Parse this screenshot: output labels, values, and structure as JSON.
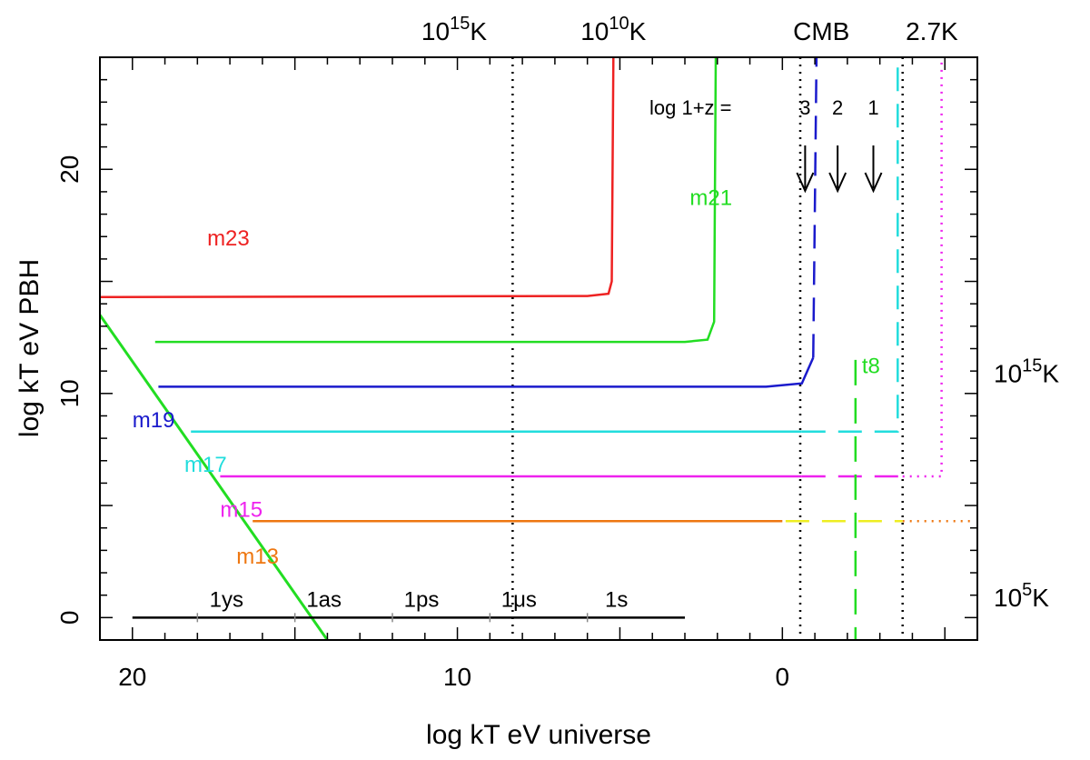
{
  "chart_data": {
    "type": "line",
    "xlabel": "log kT eV universe",
    "ylabel": "log kT eV PBH",
    "xlim": [
      21,
      -6
    ],
    "ylim": [
      -1,
      25
    ],
    "x_ticks": [
      "20",
      "10",
      "0"
    ],
    "x_tick_values": [
      20,
      10,
      0
    ],
    "y_ticks": [
      "0",
      "10",
      "20"
    ],
    "y_tick_values": [
      0,
      10,
      20
    ],
    "top_axis_labels": [
      {
        "label": "10",
        "sup": "15",
        "unit": "K",
        "at": 10.1
      },
      {
        "label": "10",
        "sup": "10",
        "unit": "K",
        "at": 5.2
      },
      {
        "label": "CMB",
        "sup": "",
        "unit": "",
        "at": -1.2
      },
      {
        "label": "2.7K",
        "sup": "",
        "unit": "",
        "at": -4.6
      }
    ],
    "right_axis_labels": [
      {
        "label": "10",
        "sup": "15",
        "unit": "K",
        "at": 10.9
      },
      {
        "label": "10",
        "sup": "5",
        "unit": "K",
        "at": 0.9
      }
    ],
    "redshift_label": "log 1+z =",
    "redshift_markers": [
      {
        "label": "3",
        "x": -0.7
      },
      {
        "label": "2",
        "x": -1.7
      },
      {
        "label": "1",
        "x": -2.8
      }
    ],
    "time_scale": {
      "y": 0,
      "x_range": [
        20,
        3
      ],
      "ticks": [
        {
          "label": "1ys",
          "x": 18
        },
        {
          "label": "1as",
          "x": 15
        },
        {
          "label": "1ps",
          "x": 12
        },
        {
          "label": "1μs",
          "x": 9
        },
        {
          "label": "1s",
          "x": 6
        }
      ]
    },
    "vertical_markers": [
      {
        "x": 8.3,
        "style": "dotted",
        "color": "#000000"
      },
      {
        "x": -0.55,
        "style": "dotted",
        "color": "#000000"
      },
      {
        "x": -3.7,
        "style": "dotted",
        "color": "#000000"
      }
    ],
    "t8": {
      "label": "t8",
      "x": -2.25,
      "y_range": [
        -1,
        11.5
      ],
      "color": "#22dd22"
    },
    "series": [
      {
        "name": "m23",
        "color": "#ee2222",
        "label_x": 17.7,
        "label_y": 16.6,
        "solid": [
          [
            21,
            14.3
          ],
          [
            6.0,
            14.35
          ],
          [
            5.35,
            14.45
          ],
          [
            5.25,
            15.0
          ],
          [
            5.2,
            25
          ]
        ],
        "dashed": [],
        "dotted": []
      },
      {
        "name": "m21",
        "color": "#22dd22",
        "label_x": 2.85,
        "label_y": 18.4,
        "solid": [
          [
            19.3,
            12.3
          ],
          [
            3.0,
            12.3
          ],
          [
            2.3,
            12.4
          ],
          [
            2.1,
            13.2
          ],
          [
            2.05,
            25
          ]
        ],
        "dashed": [],
        "dotted": []
      },
      {
        "name": "m19",
        "color": "#1a1acc",
        "label_x": 20.0,
        "label_y": 8.5,
        "solid": [
          [
            19.2,
            10.3
          ],
          [
            0.5,
            10.3
          ],
          [
            -0.6,
            10.45
          ],
          [
            -0.95,
            11.6
          ]
        ],
        "dashed": [
          [
            -0.95,
            11.6
          ],
          [
            -1.05,
            25
          ]
        ],
        "dotted": []
      },
      {
        "name": "m17",
        "color": "#22dddd",
        "label_x": 18.4,
        "label_y": 6.5,
        "solid": [
          [
            18.2,
            8.3
          ],
          [
            -0.6,
            8.3
          ]
        ],
        "dashed": [
          [
            -0.6,
            8.3
          ],
          [
            -3.55,
            8.3
          ],
          [
            -3.55,
            25
          ]
        ],
        "dotted": [
          [
            -3.55,
            25
          ],
          [
            -3.55,
            25
          ]
        ]
      },
      {
        "name": "m15",
        "color": "#ee22ee",
        "label_x": 17.3,
        "label_y": 4.5,
        "solid": [
          [
            17.3,
            6.3
          ],
          [
            -0.6,
            6.3
          ]
        ],
        "dashed": [
          [
            -0.6,
            6.3
          ],
          [
            -3.7,
            6.3
          ]
        ],
        "dotted": [
          [
            -3.7,
            6.3
          ],
          [
            -4.9,
            6.3
          ],
          [
            -4.9,
            25
          ]
        ]
      },
      {
        "name": "m13",
        "color": "#ee7711",
        "label_x": 16.8,
        "label_y": 2.4,
        "solid": [
          [
            16.3,
            4.3
          ],
          [
            0,
            4.3
          ]
        ],
        "dashed": [],
        "dotted": [
          [
            -3.7,
            4.3
          ],
          [
            -5.9,
            4.3
          ]
        ]
      }
    ],
    "yellow_segment": {
      "color": "#eeee22",
      "points": [
        [
          -0.1,
          4.3
        ],
        [
          -3.7,
          4.3
        ]
      ]
    },
    "evaporation_line": {
      "color": "#22dd22",
      "points": [
        [
          21,
          13.5
        ],
        [
          14.0,
          -1
        ]
      ]
    }
  }
}
